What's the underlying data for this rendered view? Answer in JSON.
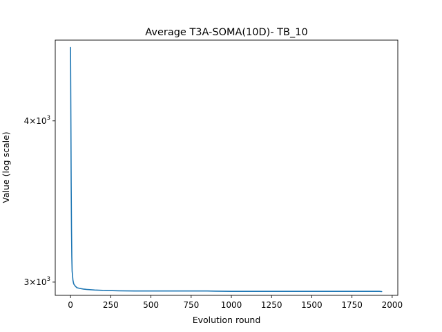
{
  "chart_data": {
    "type": "line",
    "title": "Average T3A-SOMA(10D)- TB_10",
    "xlabel": "Evolution round",
    "ylabel": "Value (log scale)",
    "yscale": "log",
    "xlim": [
      -95,
      2035
    ],
    "ylim": [
      2930,
      4620
    ],
    "grid": false,
    "legend": "none",
    "x_ticks": [
      {
        "value": 0,
        "label": "0"
      },
      {
        "value": 250,
        "label": "250"
      },
      {
        "value": 500,
        "label": "500"
      },
      {
        "value": 750,
        "label": "750"
      },
      {
        "value": 1000,
        "label": "1000"
      },
      {
        "value": 1250,
        "label": "1250"
      },
      {
        "value": 1500,
        "label": "1500"
      },
      {
        "value": 1750,
        "label": "1750"
      },
      {
        "value": 2000,
        "label": "2000"
      }
    ],
    "y_major_ticks": [
      {
        "value": 3000,
        "base": "3",
        "mantissa": "10",
        "exponent": "3"
      },
      {
        "value": 4000,
        "base": "4",
        "mantissa": "10",
        "exponent": "3"
      }
    ],
    "series": [
      {
        "color": "#1f77b4",
        "x": [
          0,
          2,
          4,
          6,
          8,
          10,
          15,
          20,
          30,
          40,
          60,
          80,
          100,
          150,
          200,
          300,
          400,
          500,
          600,
          700,
          800,
          850,
          900,
          1000,
          1100,
          1200,
          1300,
          1400,
          1500,
          1600,
          1700,
          1800,
          1900,
          1920,
          1935
        ],
        "y": [
          4560,
          4050,
          3580,
          3300,
          3140,
          3060,
          3010,
          2990,
          2978,
          2970,
          2966,
          2963,
          2961,
          2958,
          2956,
          2954,
          2953,
          2953,
          2953,
          2953,
          2953,
          2953,
          2952,
          2951,
          2951,
          2951,
          2951,
          2951,
          2951,
          2951,
          2951,
          2951,
          2951,
          2951,
          2950
        ]
      }
    ]
  }
}
